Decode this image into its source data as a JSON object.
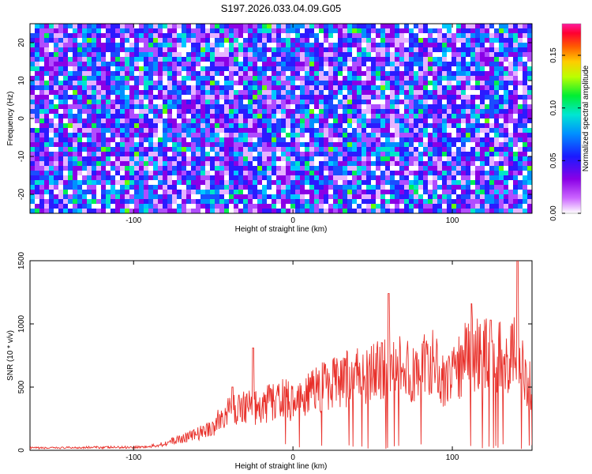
{
  "chart_data": [
    {
      "type": "heatmap",
      "title": "S197.2026.033.04.09.G05",
      "xlabel": "Height of straight line (km)",
      "ylabel": "Frequency (Hz)",
      "xlim": [
        -165,
        150
      ],
      "ylim": [
        -25,
        25
      ],
      "xticks": [
        -100,
        0,
        100
      ],
      "yticks": [
        -20,
        -10,
        0,
        10,
        20
      ],
      "colorbar": {
        "label": "Normalized spectral amplitude",
        "range": [
          0.0,
          0.18
        ],
        "ticks": [
          "0.00",
          "0.05",
          "0.10",
          "0.15"
        ],
        "tick_values": [
          0.0,
          0.05,
          0.1,
          0.15
        ],
        "colormap": [
          "#ffffff",
          "#9400d3",
          "#0000ff",
          "#00aaff",
          "#00ffcc",
          "#00ff00",
          "#ffff00",
          "#ff8800",
          "#ff0000",
          "#ff00aa"
        ]
      }
    },
    {
      "type": "line",
      "xlabel": "Height of straight line (km)",
      "ylabel": "SNR (10 * v/v)",
      "xlim": [
        -165,
        150
      ],
      "ylim": [
        0,
        1500
      ],
      "xticks": [
        -100,
        0,
        100
      ],
      "yticks": [
        0,
        500,
        1000,
        1500
      ],
      "series": [
        {
          "name": "SNR",
          "color": "#e8302a",
          "x": [
            -165,
            -150,
            -130,
            -110,
            -90,
            -80,
            -70,
            -60,
            -50,
            -45,
            -40,
            -35,
            -30,
            -25,
            -20,
            -15,
            -10,
            -5,
            0,
            5,
            10,
            15,
            20,
            25,
            30,
            35,
            40,
            45,
            50,
            55,
            60,
            65,
            70,
            75,
            80,
            85,
            90,
            95,
            100,
            105,
            110,
            115,
            120,
            125,
            130,
            135,
            140,
            145,
            150
          ],
          "y": [
            20,
            20,
            25,
            25,
            30,
            60,
            100,
            140,
            200,
            280,
            330,
            350,
            390,
            380,
            330,
            420,
            400,
            450,
            400,
            440,
            480,
            510,
            560,
            560,
            590,
            620,
            640,
            620,
            670,
            680,
            690,
            750,
            700,
            660,
            720,
            790,
            690,
            620,
            700,
            730,
            840,
            820,
            810,
            800,
            800,
            700,
            880,
            650,
            520
          ],
          "peaks": [
            {
              "x": -38,
              "y": 500
            },
            {
              "x": -25,
              "y": 810
            },
            {
              "x": 56,
              "y": 850
            },
            {
              "x": 60,
              "y": 1240
            },
            {
              "x": 112,
              "y": 1160
            },
            {
              "x": 124,
              "y": 1030
            },
            {
              "x": 141,
              "y": 1560
            }
          ]
        }
      ]
    }
  ]
}
